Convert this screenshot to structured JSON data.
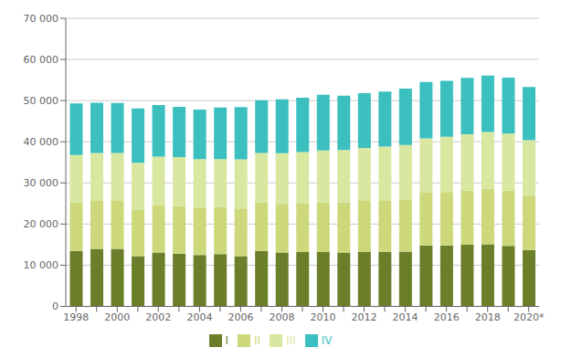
{
  "chart_data": {
    "type": "bar",
    "stacked": true,
    "grid": true,
    "legend": "bottom",
    "categories": [
      "1998",
      null,
      "2000",
      null,
      "2002",
      null,
      "2004",
      null,
      "2006",
      null,
      "2008",
      null,
      "2010",
      null,
      "2012",
      null,
      "2014",
      null,
      "2016",
      null,
      "2018",
      null,
      "2020*"
    ],
    "series": [
      {
        "name": "I",
        "color": "#6b7e2a",
        "values": [
          13500,
          14000,
          14000,
          12200,
          13100,
          12800,
          12500,
          12700,
          12200,
          13500,
          13100,
          13200,
          13200,
          13100,
          13200,
          13200,
          13300,
          14800,
          14800,
          15000,
          15100,
          14700,
          13700
        ]
      },
      {
        "name": "II",
        "color": "#ccd87a",
        "values": [
          11700,
          11600,
          11600,
          11200,
          11500,
          11600,
          11500,
          11500,
          11600,
          11700,
          11800,
          11900,
          12000,
          12200,
          12400,
          12600,
          12700,
          12800,
          13000,
          13200,
          13500,
          13500,
          13200
        ]
      },
      {
        "name": "III",
        "color": "#d9e8a0",
        "values": [
          11600,
          11700,
          11700,
          11500,
          11800,
          11900,
          11800,
          11600,
          11900,
          12100,
          12300,
          12400,
          12700,
          12700,
          12900,
          13000,
          13200,
          13200,
          13400,
          13600,
          13800,
          13800,
          13500
        ]
      },
      {
        "name": "IV",
        "color": "#3bbfbf",
        "values": [
          12500,
          12200,
          12100,
          13200,
          12500,
          12200,
          12000,
          12500,
          12700,
          12800,
          13100,
          13200,
          13500,
          13200,
          13300,
          13400,
          13700,
          13700,
          13600,
          13700,
          13700,
          13600,
          12900
        ]
      }
    ],
    "ylim": [
      0,
      70000
    ],
    "yticks": [
      0,
      {
        "value": 10000,
        "label": "10 000"
      },
      {
        "value": 20000,
        "label": "20 000"
      },
      {
        "value": 30000,
        "label": "30 000"
      },
      {
        "value": 40000,
        "label": "40 000"
      },
      {
        "value": 50000,
        "label": "50 000"
      },
      {
        "value": 60000,
        "label": "60 000"
      },
      {
        "value": 70000,
        "label": "70 000"
      }
    ]
  }
}
